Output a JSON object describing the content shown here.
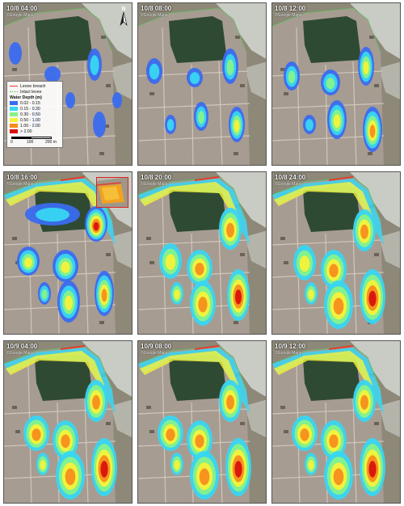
{
  "panels": [
    {
      "time": "10/8 04:00",
      "credit": "©Google Maps"
    },
    {
      "time": "10/8 08:00",
      "credit": "©Google Maps"
    },
    {
      "time": "10/8 12:00",
      "credit": "©Google Maps"
    },
    {
      "time": "10/8 16:00",
      "credit": "©Google Maps"
    },
    {
      "time": "10/8 20:00",
      "credit": "©Google Maps"
    },
    {
      "time": "10/8 24:00",
      "credit": "©Google Maps"
    },
    {
      "time": "10/9 04:00",
      "credit": "©Google Maps"
    },
    {
      "time": "10/9 08:00",
      "credit": "©Google Maps"
    },
    {
      "time": "10/9 12:00",
      "credit": "©Google Maps"
    }
  ],
  "north_label": "N",
  "legend": {
    "levee_breach": "Levee breach",
    "intact_levee": "Intact levee",
    "title": "Water Depth (m)",
    "classes": [
      {
        "label": "0.02 - 0.15",
        "color": "#3a6cf0"
      },
      {
        "label": "0.15 - 0.30",
        "color": "#38d6f2"
      },
      {
        "label": "0.30 - 0.50",
        "color": "#86f28a"
      },
      {
        "label": "0.50 - 1.00",
        "color": "#f6f23a"
      },
      {
        "label": "1.00 - 2.00",
        "color": "#f68e1c"
      },
      {
        "label": "> 2.00",
        "color": "#d8120c"
      }
    ],
    "scale_labels": [
      "0",
      "100",
      "200 m"
    ]
  },
  "colors": {
    "breach": "#e83a2a",
    "intact": "#44c84a",
    "river": "#c9ccc4",
    "forest": "#2f4a33",
    "field": "#a79c92",
    "farmland": "#8e8878",
    "inset_border": "#d22222"
  }
}
